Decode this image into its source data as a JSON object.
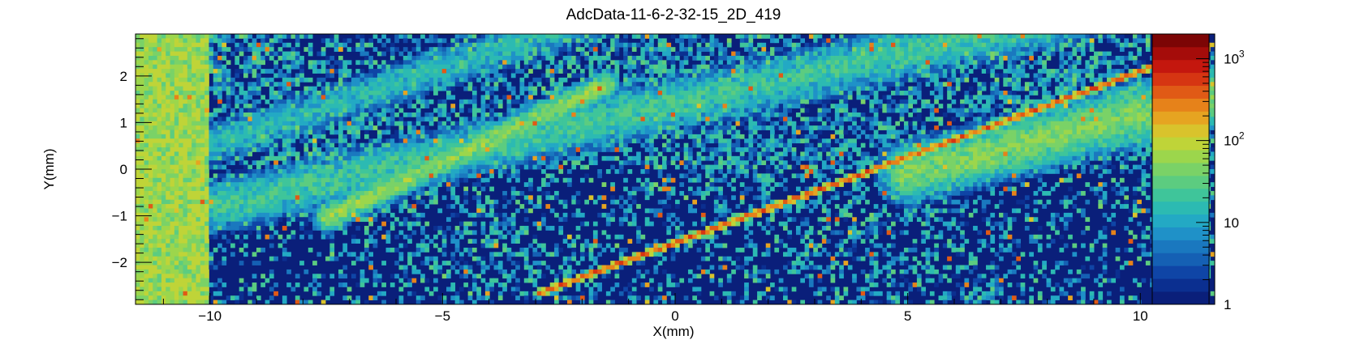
{
  "chart_data": {
    "type": "heatmap",
    "title": "AdcData-11-6-2-32-15_2D_419",
    "xlabel": "X(mm)",
    "ylabel": "Y(mm)",
    "xlim": [
      -11.6,
      11.6
    ],
    "ylim": [
      -2.9,
      2.9
    ],
    "x_ticks": [
      -10,
      -5,
      0,
      5,
      10
    ],
    "x_tick_labels": [
      "−10",
      "−5",
      "0",
      "5",
      "10"
    ],
    "y_ticks": [
      -2,
      -1,
      0,
      1,
      2
    ],
    "y_tick_labels": [
      "−2",
      "−1",
      "0",
      "1",
      "2"
    ],
    "z_scale": "log",
    "z_range": [
      1,
      2000
    ],
    "colorbar_ticks": [
      {
        "value": 1,
        "label": "1"
      },
      {
        "value": 10,
        "label": "10"
      },
      {
        "value": 100,
        "label": "10",
        "exponent": "2"
      },
      {
        "value": 1000,
        "label": "10",
        "exponent": "3"
      }
    ],
    "palette": [
      "#0a1f7a",
      "#0b2f90",
      "#0f45a6",
      "#1560b4",
      "#1a78bf",
      "#1f91c8",
      "#23a9c4",
      "#2cbab2",
      "#3fc59a",
      "#5ccc80",
      "#7ad267",
      "#9cd64c",
      "#bfd438",
      "#d9c32c",
      "#e6a421",
      "#e6821a",
      "#e05a16",
      "#d63512",
      "#c4170e",
      "#a50c0a",
      "#7c0505"
    ],
    "features": [
      {
        "name": "",
        "x0": -11.6,
        "y0": -1.2,
        "x1": 11.6,
        "y1": 4.0,
        "width": 0.28,
        "level": 28
      },
      {
        "name": "",
        "x0": -11.6,
        "y0": 0.0,
        "x1": 0.0,
        "y1": 3.8,
        "width": 0.22,
        "level": 18
      },
      {
        "name": "",
        "x0": -7.5,
        "y0": -1.05,
        "x1": -1.5,
        "y1": 1.8,
        "width": 0.14,
        "level": 70
      },
      {
        "name": "",
        "x0": -2.9,
        "y0": -2.65,
        "x1": 11.5,
        "y1": 2.65,
        "width": 0.035,
        "level": 500
      },
      {
        "name": "",
        "x0": 5.0,
        "y0": -0.1,
        "x1": 11.6,
        "y1": 1.6,
        "width": 0.3,
        "level": 60
      },
      {
        "name": "",
        "x0": -11.6,
        "y0": -2.9,
        "x1": -10.05,
        "y1": 2.9,
        "width": 0,
        "level": 90
      }
    ]
  }
}
